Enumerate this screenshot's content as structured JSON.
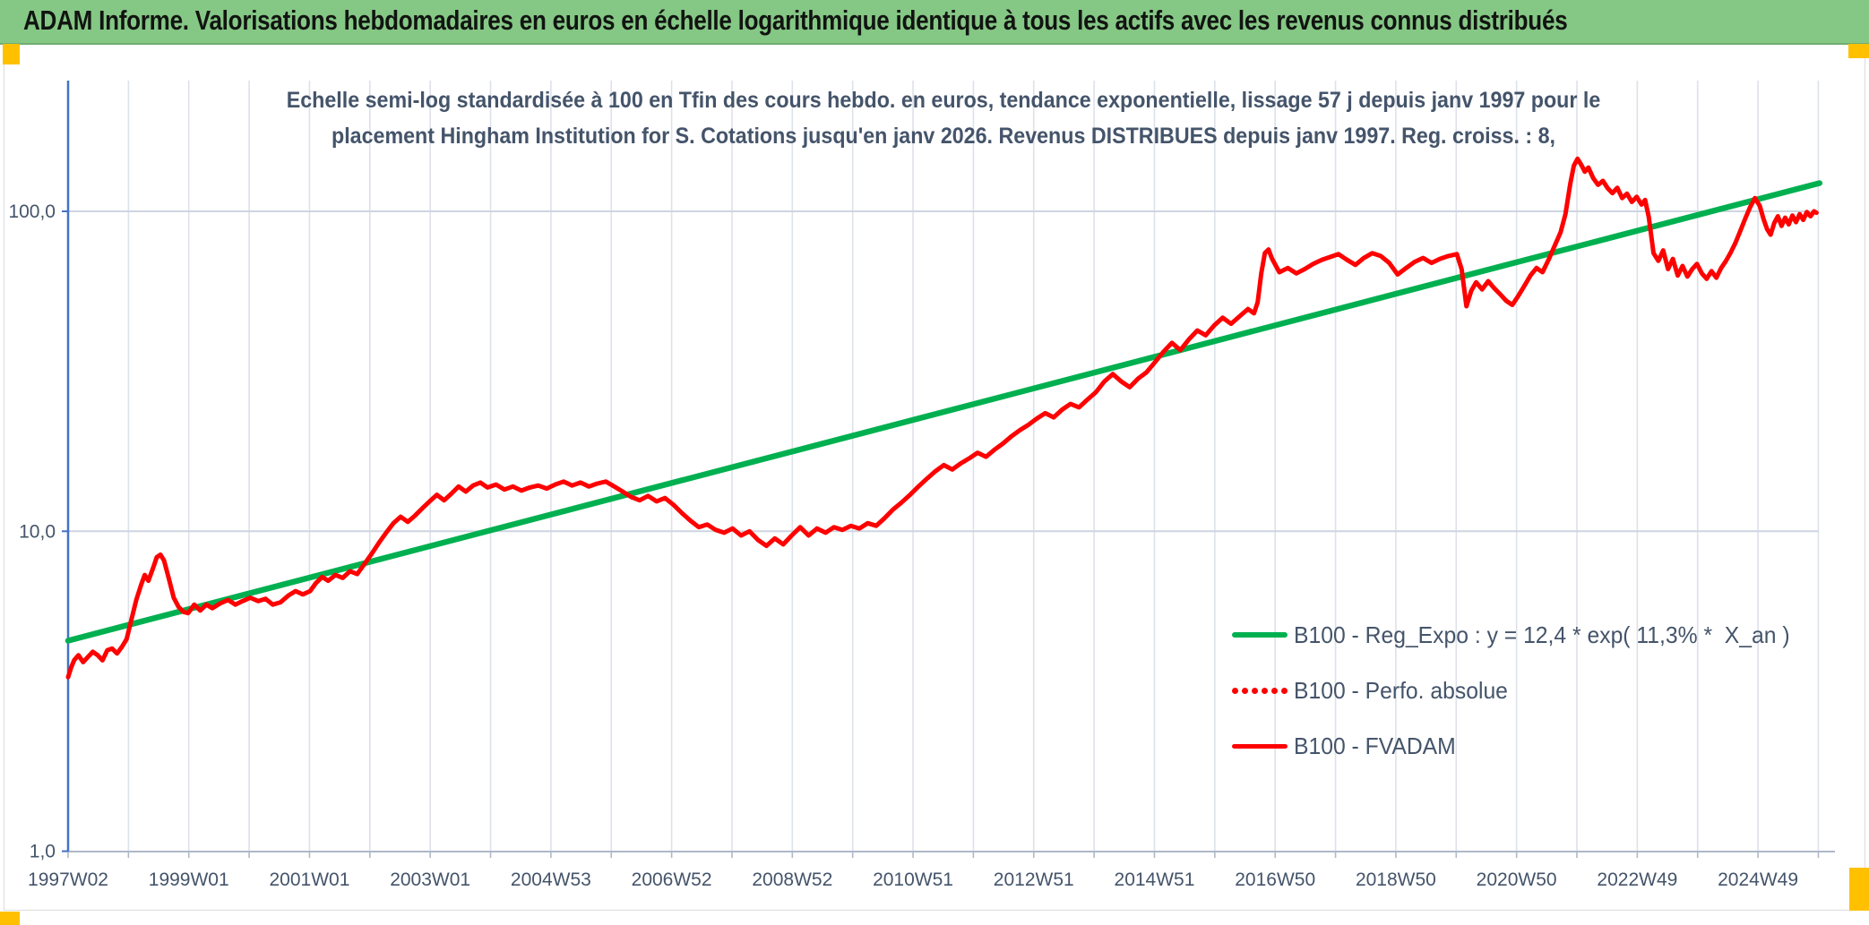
{
  "header": {
    "title": "ADAM Informe. Valorisations hebdomadaires en euros en échelle logarithmique identique à tous les actifs avec les revenus connus distribués"
  },
  "subtitle": {
    "line1": "Echelle semi-log standardisée à 100 en Tfin des cours hebdo. en euros, tendance exponentielle, lissage 57 j depuis janv 1997 pour le",
    "line2": "placement Hingham Institution for S. Cotations jusqu'en janv 2026. Revenus DISTRIBUES depuis janv 1997. Reg. croiss. : 8,"
  },
  "colors": {
    "header_bg": "#85C785",
    "accent_gold": "#FFC000",
    "text_slate": "#44546A",
    "series_red": "#FF0000",
    "trend_green": "#00B050",
    "axis_blue": "#4472C4",
    "grid_vertical": "#DDE1E9",
    "grid_horizontal": "#CDD5E0",
    "axis_bottom": "#AEB9C9"
  },
  "chart_data": {
    "type": "line",
    "y_scale": "log",
    "title": "Echelle semi-log standardisée à 100 en Tfin des cours hebdo. en euros, tendance exponentielle, lissage 57 j depuis janv 1997 pour le placement Hingham Institution for S. Cotations jusqu'en janv 2026. Revenus DISTRIBUES depuis janv 1997. Reg. croiss. : 8,",
    "xlabel": "",
    "ylabel": "",
    "xlim": [
      1997.03,
      2026.3
    ],
    "ylim": [
      1,
      250
    ],
    "grid": true,
    "legend_position": "inside lower-right",
    "x_tick_labels": [
      {
        "slot": 0,
        "text": "1997W02"
      },
      {
        "slot": 2,
        "text": "1999W01"
      },
      {
        "slot": 4,
        "text": "2001W01"
      },
      {
        "slot": 6,
        "text": "2003W01"
      },
      {
        "slot": 8,
        "text": "2004W53"
      },
      {
        "slot": 10,
        "text": "2006W52"
      },
      {
        "slot": 12,
        "text": "2008W52"
      },
      {
        "slot": 14,
        "text": "2010W51"
      },
      {
        "slot": 16,
        "text": "2012W51"
      },
      {
        "slot": 18,
        "text": "2014W51"
      },
      {
        "slot": 20,
        "text": "2016W50"
      },
      {
        "slot": 22,
        "text": "2018W50"
      },
      {
        "slot": 24,
        "text": "2020W50"
      },
      {
        "slot": 26,
        "text": "2022W49"
      },
      {
        "slot": 28,
        "text": "2024W49"
      }
    ],
    "gridline_count": 30,
    "y_tick_labels": [
      {
        "value": 100,
        "text": "100,0"
      },
      {
        "value": 10,
        "text": "10,0"
      },
      {
        "value": 1,
        "text": "1,0"
      }
    ],
    "series": [
      {
        "name": "B100 - Reg_Expo : y = 12,4 * exp( 11,3% *  X_an )",
        "color": "#00B050",
        "line_style": "solid",
        "thickness": 6.5,
        "kind": "exponential_trend",
        "points": [
          [
            1997.03,
            4.55
          ],
          [
            2026.05,
            122.5
          ]
        ]
      },
      {
        "name": "B100 - Perfo. absolue",
        "color": "#FF0000",
        "line_style": "dotted",
        "thickness": 7,
        "kind": "line",
        "points_note": "coincides with B100 - FVADAM series (hidden underneath it on the chart)",
        "points": []
      },
      {
        "name": "B100 - FVADAM",
        "color": "#FF0000",
        "line_style": "solid",
        "thickness": 5,
        "kind": "line",
        "points": [
          [
            1997.03,
            3.5
          ],
          [
            1997.08,
            3.75
          ],
          [
            1997.13,
            3.95
          ],
          [
            1997.2,
            4.1
          ],
          [
            1997.28,
            3.9
          ],
          [
            1997.36,
            4.05
          ],
          [
            1997.44,
            4.2
          ],
          [
            1997.52,
            4.1
          ],
          [
            1997.6,
            3.95
          ],
          [
            1997.68,
            4.25
          ],
          [
            1997.76,
            4.3
          ],
          [
            1997.84,
            4.15
          ],
          [
            1997.92,
            4.35
          ],
          [
            1998.0,
            4.6
          ],
          [
            1998.08,
            5.3
          ],
          [
            1998.16,
            6.1
          ],
          [
            1998.24,
            6.8
          ],
          [
            1998.3,
            7.3
          ],
          [
            1998.36,
            7.0
          ],
          [
            1998.44,
            7.7
          ],
          [
            1998.5,
            8.3
          ],
          [
            1998.56,
            8.45
          ],
          [
            1998.62,
            8.1
          ],
          [
            1998.7,
            7.1
          ],
          [
            1998.78,
            6.2
          ],
          [
            1998.86,
            5.8
          ],
          [
            1998.94,
            5.6
          ],
          [
            1999.02,
            5.55
          ],
          [
            1999.12,
            5.9
          ],
          [
            1999.22,
            5.65
          ],
          [
            1999.32,
            5.9
          ],
          [
            1999.42,
            5.75
          ],
          [
            1999.55,
            5.95
          ],
          [
            1999.68,
            6.1
          ],
          [
            1999.8,
            5.9
          ],
          [
            1999.92,
            6.05
          ],
          [
            2000.05,
            6.2
          ],
          [
            2000.18,
            6.05
          ],
          [
            2000.3,
            6.15
          ],
          [
            2000.42,
            5.9
          ],
          [
            2000.55,
            6.0
          ],
          [
            2000.68,
            6.3
          ],
          [
            2000.8,
            6.5
          ],
          [
            2000.92,
            6.35
          ],
          [
            2001.04,
            6.5
          ],
          [
            2001.14,
            6.9
          ],
          [
            2001.24,
            7.2
          ],
          [
            2001.34,
            7.0
          ],
          [
            2001.46,
            7.3
          ],
          [
            2001.58,
            7.15
          ],
          [
            2001.7,
            7.5
          ],
          [
            2001.82,
            7.35
          ],
          [
            2001.94,
            7.9
          ],
          [
            2002.06,
            8.5
          ],
          [
            2002.18,
            9.2
          ],
          [
            2002.3,
            9.9
          ],
          [
            2002.42,
            10.6
          ],
          [
            2002.54,
            11.1
          ],
          [
            2002.66,
            10.7
          ],
          [
            2002.78,
            11.2
          ],
          [
            2002.9,
            11.8
          ],
          [
            2003.02,
            12.4
          ],
          [
            2003.14,
            13.0
          ],
          [
            2003.26,
            12.5
          ],
          [
            2003.38,
            13.1
          ],
          [
            2003.5,
            13.8
          ],
          [
            2003.62,
            13.3
          ],
          [
            2003.74,
            13.9
          ],
          [
            2003.86,
            14.2
          ],
          [
            2003.98,
            13.7
          ],
          [
            2004.12,
            14.0
          ],
          [
            2004.26,
            13.5
          ],
          [
            2004.4,
            13.8
          ],
          [
            2004.54,
            13.4
          ],
          [
            2004.68,
            13.7
          ],
          [
            2004.82,
            13.9
          ],
          [
            2004.96,
            13.6
          ],
          [
            2005.1,
            14.0
          ],
          [
            2005.24,
            14.3
          ],
          [
            2005.38,
            13.9
          ],
          [
            2005.52,
            14.2
          ],
          [
            2005.66,
            13.8
          ],
          [
            2005.8,
            14.1
          ],
          [
            2005.94,
            14.3
          ],
          [
            2006.08,
            13.8
          ],
          [
            2006.22,
            13.3
          ],
          [
            2006.36,
            12.8
          ],
          [
            2006.5,
            12.5
          ],
          [
            2006.64,
            12.9
          ],
          [
            2006.78,
            12.4
          ],
          [
            2006.92,
            12.7
          ],
          [
            2007.06,
            12.1
          ],
          [
            2007.2,
            11.4
          ],
          [
            2007.34,
            10.8
          ],
          [
            2007.48,
            10.3
          ],
          [
            2007.62,
            10.5
          ],
          [
            2007.76,
            10.1
          ],
          [
            2007.9,
            9.9
          ],
          [
            2008.04,
            10.2
          ],
          [
            2008.18,
            9.7
          ],
          [
            2008.32,
            10.0
          ],
          [
            2008.46,
            9.4
          ],
          [
            2008.6,
            9.0
          ],
          [
            2008.74,
            9.5
          ],
          [
            2008.88,
            9.1
          ],
          [
            2009.02,
            9.7
          ],
          [
            2009.16,
            10.3
          ],
          [
            2009.3,
            9.7
          ],
          [
            2009.44,
            10.2
          ],
          [
            2009.58,
            9.9
          ],
          [
            2009.72,
            10.3
          ],
          [
            2009.86,
            10.1
          ],
          [
            2010.0,
            10.4
          ],
          [
            2010.14,
            10.2
          ],
          [
            2010.28,
            10.6
          ],
          [
            2010.42,
            10.4
          ],
          [
            2010.56,
            11.0
          ],
          [
            2010.7,
            11.7
          ],
          [
            2010.84,
            12.3
          ],
          [
            2010.98,
            13.0
          ],
          [
            2011.12,
            13.8
          ],
          [
            2011.26,
            14.6
          ],
          [
            2011.4,
            15.4
          ],
          [
            2011.54,
            16.1
          ],
          [
            2011.68,
            15.6
          ],
          [
            2011.82,
            16.3
          ],
          [
            2011.96,
            16.9
          ],
          [
            2012.1,
            17.6
          ],
          [
            2012.24,
            17.1
          ],
          [
            2012.38,
            18.0
          ],
          [
            2012.52,
            18.8
          ],
          [
            2012.66,
            19.8
          ],
          [
            2012.8,
            20.7
          ],
          [
            2012.94,
            21.5
          ],
          [
            2013.08,
            22.5
          ],
          [
            2013.22,
            23.4
          ],
          [
            2013.36,
            22.7
          ],
          [
            2013.5,
            24.0
          ],
          [
            2013.64,
            25.0
          ],
          [
            2013.78,
            24.4
          ],
          [
            2013.92,
            25.8
          ],
          [
            2014.06,
            27.2
          ],
          [
            2014.2,
            29.4
          ],
          [
            2014.34,
            31.0
          ],
          [
            2014.48,
            29.4
          ],
          [
            2014.62,
            28.2
          ],
          [
            2014.76,
            30.0
          ],
          [
            2014.9,
            31.4
          ],
          [
            2015.04,
            33.8
          ],
          [
            2015.18,
            36.4
          ],
          [
            2015.32,
            38.8
          ],
          [
            2015.46,
            36.8
          ],
          [
            2015.6,
            39.8
          ],
          [
            2015.74,
            42.4
          ],
          [
            2015.88,
            41.0
          ],
          [
            2016.02,
            44.0
          ],
          [
            2016.16,
            46.5
          ],
          [
            2016.3,
            44.5
          ],
          [
            2016.44,
            47.0
          ],
          [
            2016.58,
            49.5
          ],
          [
            2016.68,
            48.0
          ],
          [
            2016.74,
            52.0
          ],
          [
            2016.8,
            64.0
          ],
          [
            2016.86,
            74.0
          ],
          [
            2016.92,
            76.0
          ],
          [
            2016.98,
            71.0
          ],
          [
            2017.1,
            64.5
          ],
          [
            2017.24,
            66.5
          ],
          [
            2017.38,
            64.0
          ],
          [
            2017.52,
            66.0
          ],
          [
            2017.66,
            68.5
          ],
          [
            2017.8,
            70.5
          ],
          [
            2017.94,
            72.0
          ],
          [
            2018.08,
            73.5
          ],
          [
            2018.22,
            70.5
          ],
          [
            2018.36,
            68.0
          ],
          [
            2018.5,
            71.5
          ],
          [
            2018.64,
            74.0
          ],
          [
            2018.78,
            72.5
          ],
          [
            2018.92,
            69.0
          ],
          [
            2019.06,
            63.5
          ],
          [
            2019.2,
            66.5
          ],
          [
            2019.34,
            69.5
          ],
          [
            2019.48,
            71.5
          ],
          [
            2019.62,
            69.0
          ],
          [
            2019.76,
            71.0
          ],
          [
            2019.9,
            72.5
          ],
          [
            2020.04,
            73.5
          ],
          [
            2020.12,
            66.0
          ],
          [
            2020.2,
            50.5
          ],
          [
            2020.28,
            56.5
          ],
          [
            2020.36,
            60.0
          ],
          [
            2020.46,
            57.0
          ],
          [
            2020.56,
            60.5
          ],
          [
            2020.66,
            57.5
          ],
          [
            2020.76,
            55.0
          ],
          [
            2020.86,
            52.5
          ],
          [
            2020.96,
            51.0
          ],
          [
            2021.06,
            54.5
          ],
          [
            2021.16,
            58.5
          ],
          [
            2021.26,
            63.0
          ],
          [
            2021.36,
            66.5
          ],
          [
            2021.46,
            64.5
          ],
          [
            2021.56,
            70.5
          ],
          [
            2021.66,
            78.0
          ],
          [
            2021.76,
            86.0
          ],
          [
            2021.84,
            98.0
          ],
          [
            2021.92,
            122.0
          ],
          [
            2021.98,
            139.0
          ],
          [
            2022.04,
            146.0
          ],
          [
            2022.1,
            140.0
          ],
          [
            2022.16,
            133.0
          ],
          [
            2022.22,
            137.0
          ],
          [
            2022.3,
            127.0
          ],
          [
            2022.38,
            121.0
          ],
          [
            2022.46,
            124.5
          ],
          [
            2022.54,
            118.0
          ],
          [
            2022.62,
            114.0
          ],
          [
            2022.7,
            118.5
          ],
          [
            2022.78,
            110.0
          ],
          [
            2022.86,
            113.5
          ],
          [
            2022.94,
            107.0
          ],
          [
            2023.02,
            111.0
          ],
          [
            2023.1,
            105.0
          ],
          [
            2023.16,
            108.5
          ],
          [
            2023.22,
            96.0
          ],
          [
            2023.3,
            74.0
          ],
          [
            2023.38,
            70.0
          ],
          [
            2023.46,
            75.5
          ],
          [
            2023.54,
            66.0
          ],
          [
            2023.62,
            71.0
          ],
          [
            2023.7,
            63.0
          ],
          [
            2023.78,
            67.5
          ],
          [
            2023.86,
            62.5
          ],
          [
            2023.94,
            66.0
          ],
          [
            2024.02,
            68.5
          ],
          [
            2024.1,
            64.0
          ],
          [
            2024.18,
            61.5
          ],
          [
            2024.26,
            65.0
          ],
          [
            2024.34,
            62.0
          ],
          [
            2024.42,
            66.5
          ],
          [
            2024.5,
            70.0
          ],
          [
            2024.58,
            74.5
          ],
          [
            2024.66,
            80.0
          ],
          [
            2024.74,
            87.0
          ],
          [
            2024.82,
            95.0
          ],
          [
            2024.9,
            103.0
          ],
          [
            2024.98,
            110.0
          ],
          [
            2025.06,
            104.0
          ],
          [
            2025.12,
            95.0
          ],
          [
            2025.18,
            88.0
          ],
          [
            2025.24,
            84.5
          ],
          [
            2025.3,
            92.0
          ],
          [
            2025.36,
            96.5
          ],
          [
            2025.42,
            90.0
          ],
          [
            2025.48,
            95.5
          ],
          [
            2025.54,
            91.0
          ],
          [
            2025.6,
            97.0
          ],
          [
            2025.66,
            92.5
          ],
          [
            2025.72,
            98.0
          ],
          [
            2025.78,
            94.0
          ],
          [
            2025.84,
            99.5
          ],
          [
            2025.9,
            96.5
          ],
          [
            2025.96,
            100.0
          ],
          [
            2026.0,
            99.0
          ]
        ]
      }
    ]
  }
}
